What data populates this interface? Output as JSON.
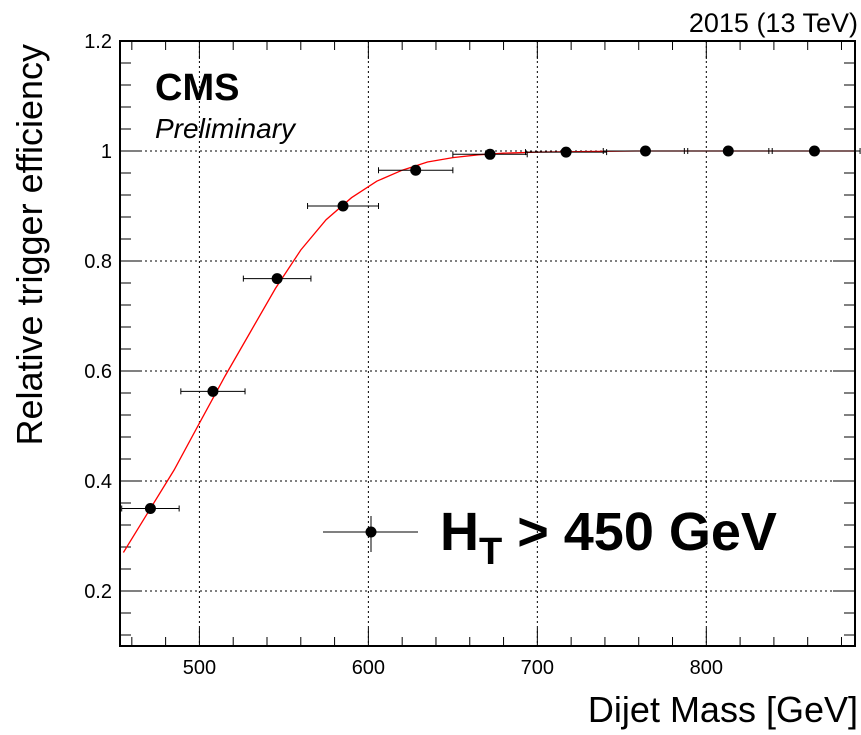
{
  "chart_data": {
    "type": "scatter",
    "energy_label": "2015 (13 TeV)",
    "experiment": "CMS",
    "status": "Preliminary",
    "xlabel": "Dijet Mass [GeV]",
    "ylabel": "Relative trigger efficiency",
    "xlim": [
      453,
      888
    ],
    "ylim": [
      0.1,
      1.2
    ],
    "x_ticks": [
      500,
      600,
      700,
      800
    ],
    "x_tick_labels": [
      "500",
      "600",
      "700",
      "800"
    ],
    "y_ticks": [
      0.2,
      0.4,
      0.6,
      0.8,
      1.0,
      1.2
    ],
    "y_tick_labels": [
      "0.2",
      "0.4",
      "0.6",
      "0.8",
      "1",
      "1.2"
    ],
    "grid": true,
    "legend": {
      "label_main": "H",
      "label_sub": "T",
      "label_rest": " > 450 GeV",
      "placement": "bottom-right"
    },
    "series": [
      {
        "marker": "circle",
        "color": "#000000",
        "x": [
          471,
          508,
          546,
          585,
          628,
          672,
          717,
          764,
          813,
          864
        ],
        "y": [
          0.35,
          0.563,
          0.768,
          0.9,
          0.965,
          0.994,
          0.998,
          1.0,
          1.0,
          1.0
        ],
        "x_err": [
          17,
          19,
          20,
          21,
          22,
          22,
          24,
          25,
          26,
          27
        ]
      }
    ],
    "fit": {
      "color": "#ff0000",
      "x": [
        455,
        470,
        485,
        500,
        515,
        530,
        545,
        560,
        575,
        590,
        605,
        620,
        635,
        650,
        665,
        680,
        700,
        730,
        760,
        800,
        850,
        888
      ],
      "y": [
        0.27,
        0.345,
        0.42,
        0.505,
        0.59,
        0.67,
        0.75,
        0.82,
        0.875,
        0.915,
        0.945,
        0.965,
        0.98,
        0.988,
        0.993,
        0.996,
        0.998,
        0.999,
        1.0,
        1.0,
        1.0,
        1.0
      ]
    }
  }
}
